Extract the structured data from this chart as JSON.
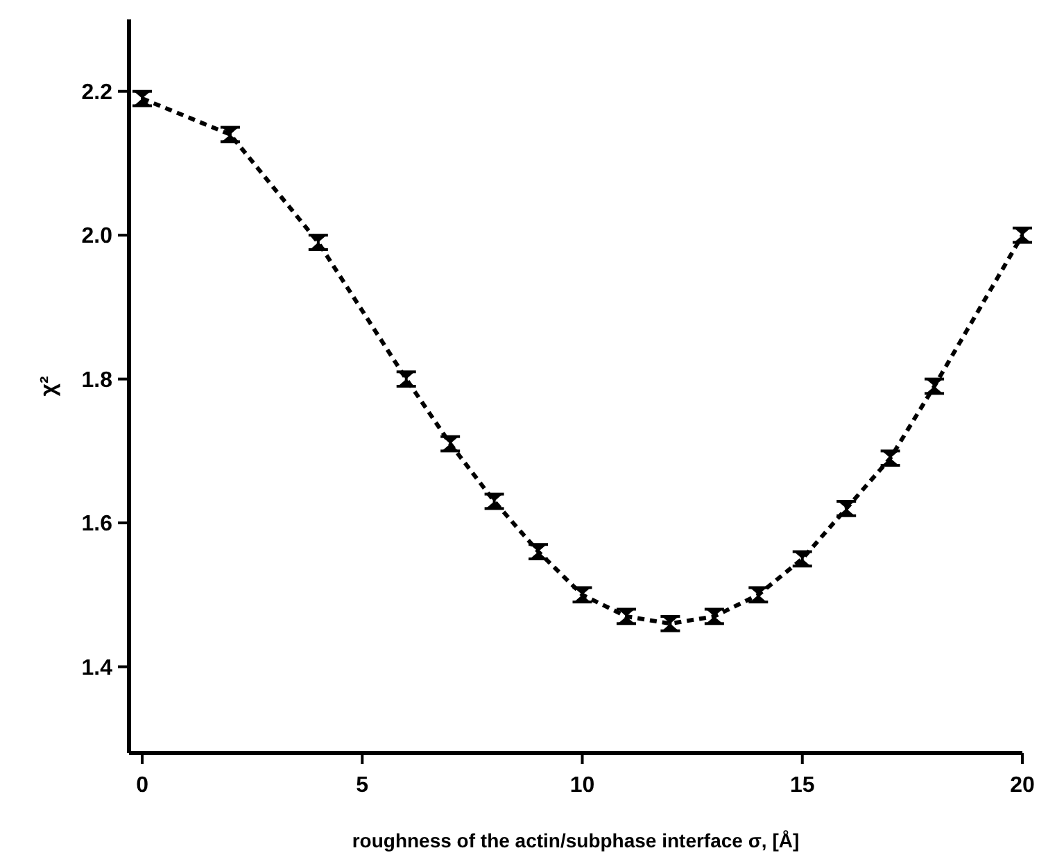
{
  "chart_data": {
    "type": "line",
    "xlabel": "roughness of the actin/subphase interface σ, [Å]",
    "ylabel": "χ²",
    "x": [
      0,
      2,
      4,
      6,
      7,
      8,
      9,
      10,
      11,
      12,
      13,
      14,
      15,
      16,
      17,
      18,
      20
    ],
    "series": [
      {
        "color": "#000000",
        "values": [
          2.19,
          2.14,
          1.99,
          1.8,
          1.71,
          1.63,
          1.56,
          1.5,
          1.47,
          1.46,
          1.47,
          1.5,
          1.55,
          1.62,
          1.69,
          1.79,
          2.0
        ],
        "errors": [
          0.01,
          0.01,
          0.01,
          0.01,
          0.01,
          0.01,
          0.01,
          0.01,
          0.01,
          0.01,
          0.01,
          0.01,
          0.01,
          0.01,
          0.01,
          0.01,
          0.01
        ]
      }
    ],
    "xlim": [
      -0.3,
      20
    ],
    "xticks": [
      0,
      5,
      10,
      15,
      20
    ],
    "ylim": [
      1.28,
      2.3
    ],
    "yticks": [
      1.4,
      1.6,
      1.8,
      {
        "value": 2.0,
        "label": "2.0"
      },
      2.2
    ],
    "grid": false,
    "marker": "none",
    "line_style": "dashed"
  }
}
